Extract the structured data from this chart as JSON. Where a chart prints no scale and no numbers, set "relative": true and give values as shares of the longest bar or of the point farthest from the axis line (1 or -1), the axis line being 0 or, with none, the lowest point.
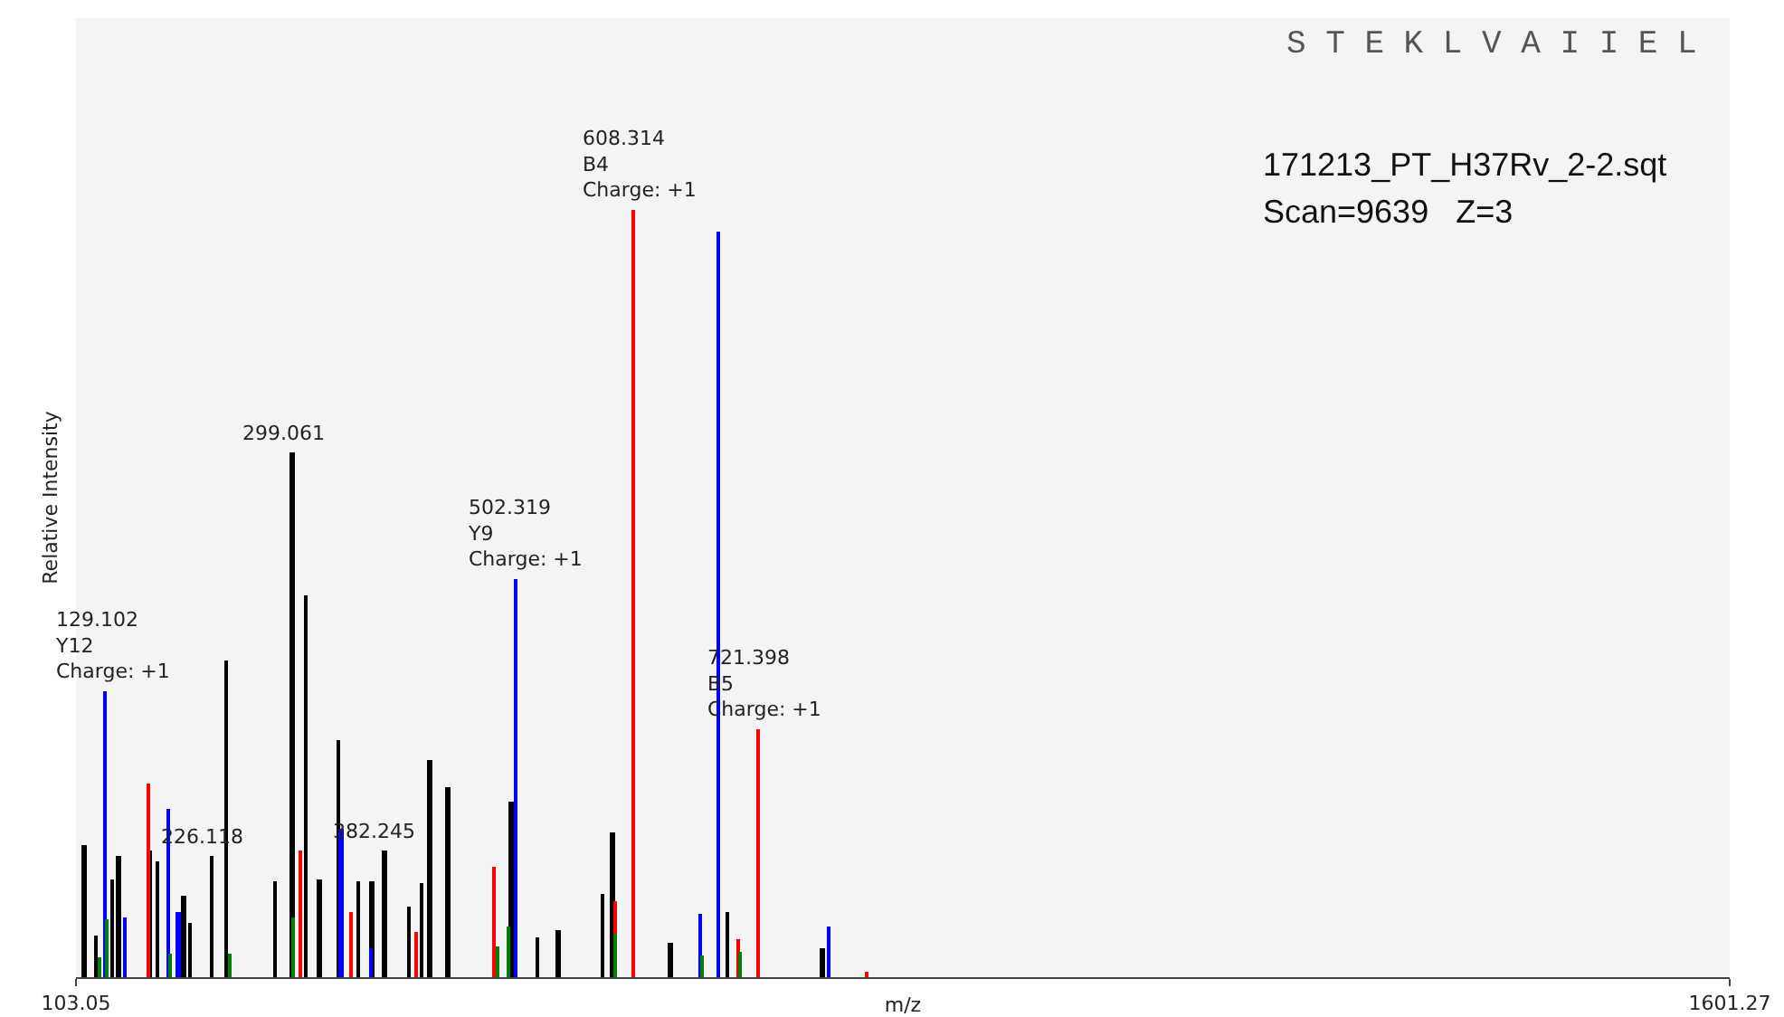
{
  "chart_data": {
    "type": "bar",
    "relative": true,
    "xlabel": "m/z",
    "ylabel": "Relative Intensity",
    "xlim": [
      103.05,
      1601.27
    ],
    "xticks": [
      103.05,
      1601.27
    ],
    "grid": false,
    "series": [
      {
        "color": "#000000",
        "x": [
          110.3,
          121.0,
          136.0,
          141.4,
          169.6,
          176.7,
          200.2,
          206.6,
          226.118,
          239.3,
          283.6,
          299.061,
          311.5,
          323.3,
          340.9,
          359.0,
          371.4,
          382.245,
          404.6,
          416.3,
          423.9,
          440.0,
          497.1,
          521.2,
          540.0,
          580.1,
          589.2,
          641.5,
          693.5,
          779.1
        ],
        "values": [
          0.173,
          0.054,
          0.127,
          0.158,
          0.164,
          0.15,
          0.105,
          0.07,
          0.158,
          0.412,
          0.125,
          0.683,
          0.497,
          0.127,
          0.309,
          0.124,
          0.125,
          0.164,
          0.092,
          0.123,
          0.282,
          0.247,
          0.228,
          0.053,
          0.062,
          0.109,
          0.189,
          0.045,
          0.084,
          0.037
        ]
      },
      {
        "color": "#ff0000",
        "x": [
          168.1,
          306.1,
          351.7,
          411.5,
          481.0,
          590.8,
          608.314,
          703.2,
          721.398,
          819.7
        ],
        "values": [
          0.252,
          0.164,
          0.084,
          0.059,
          0.144,
          0.098,
          1.0,
          0.049,
          0.324,
          0.007
        ]
      },
      {
        "color": "#0000ff",
        "x": [
          129.102,
          147.8,
          186.8,
          196.0,
          343.6,
          371.0,
          502.319,
          668.3,
          686.0,
          785.0
        ],
        "values": [
          0.373,
          0.079,
          0.219,
          0.084,
          0.194,
          0.037,
          0.52,
          0.082,
          0.972,
          0.067
        ]
      },
      {
        "color": "#008000",
        "x": [
          124.2,
          130.7,
          187.9,
          243.0,
          300.3,
          484.9,
          495.5,
          591.8,
          669.9,
          704.2
        ],
        "values": [
          0.026,
          0.075,
          0.03,
          0.03,
          0.078,
          0.04,
          0.067,
          0.057,
          0.028,
          0.033
        ]
      }
    ],
    "annotations": [
      {
        "text": "608.314\nB4\nCharge: +1",
        "x": 608.314,
        "y": 1.0
      },
      {
        "text": "502.319\nY9\nCharge: +1",
        "x": 502.319,
        "y": 0.52
      },
      {
        "text": "721.398\nB5\nCharge: +1",
        "x": 721.398,
        "y": 0.324
      },
      {
        "text": "129.102\nY12\nCharge: +1",
        "x": 129.102,
        "y": 0.373
      },
      {
        "text": "299.061",
        "x": 299.061,
        "y": 0.683
      },
      {
        "text": "226.118",
        "x": 226.118,
        "y": 0.158
      },
      {
        "text": "382.245",
        "x": 382.245,
        "y": 0.164
      },
      "S T E K L V A I I E L",
      "171213_PT_H37Rv_2-2.sqt",
      "Scan=9639   Z=3"
    ]
  }
}
